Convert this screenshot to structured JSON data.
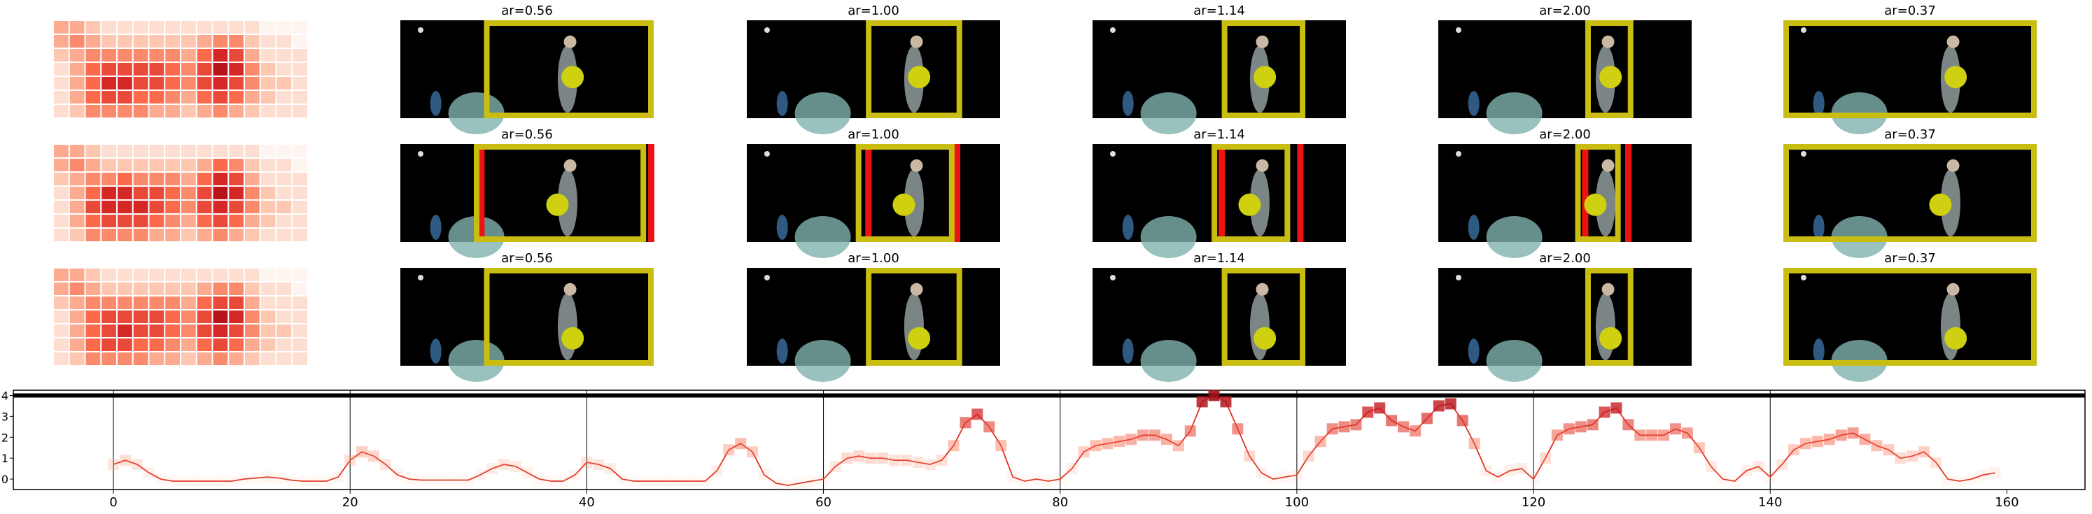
{
  "chart_data": [
    {
      "type": "heatmap",
      "colormap": "Reds",
      "values": [
        [
          3,
          3,
          2,
          1,
          1,
          1,
          1,
          1,
          1,
          1,
          1,
          1,
          1,
          0,
          0,
          0
        ],
        [
          3,
          4,
          3,
          2,
          2,
          2,
          2,
          2,
          2,
          3,
          4,
          4,
          2,
          1,
          1,
          0
        ],
        [
          2,
          3,
          4,
          4,
          4,
          4,
          4,
          4,
          3,
          5,
          7,
          6,
          3,
          1,
          1,
          1
        ],
        [
          1,
          3,
          5,
          6,
          6,
          6,
          6,
          5,
          4,
          6,
          8,
          7,
          4,
          2,
          1,
          1
        ],
        [
          1,
          3,
          5,
          7,
          7,
          6,
          6,
          5,
          4,
          6,
          7,
          6,
          4,
          2,
          2,
          1
        ],
        [
          1,
          3,
          5,
          6,
          6,
          5,
          5,
          4,
          3,
          5,
          6,
          5,
          3,
          2,
          1,
          1
        ],
        [
          1,
          2,
          4,
          4,
          4,
          4,
          3,
          3,
          2,
          3,
          4,
          3,
          2,
          1,
          1,
          1
        ]
      ]
    },
    {
      "type": "heatmap",
      "colormap": "Reds",
      "values": [
        [
          3,
          3,
          2,
          1,
          1,
          1,
          1,
          1,
          1,
          1,
          1,
          1,
          1,
          0,
          0,
          0
        ],
        [
          3,
          4,
          3,
          2,
          2,
          2,
          2,
          2,
          2,
          3,
          5,
          4,
          2,
          1,
          1,
          0
        ],
        [
          2,
          3,
          4,
          4,
          5,
          4,
          4,
          4,
          3,
          5,
          7,
          6,
          3,
          1,
          1,
          1
        ],
        [
          1,
          3,
          5,
          7,
          7,
          6,
          6,
          5,
          4,
          6,
          8,
          7,
          4,
          2,
          1,
          1
        ],
        [
          1,
          3,
          6,
          7,
          7,
          7,
          6,
          5,
          4,
          6,
          7,
          6,
          4,
          2,
          2,
          1
        ],
        [
          1,
          3,
          5,
          6,
          6,
          6,
          5,
          4,
          3,
          5,
          6,
          5,
          3,
          2,
          1,
          1
        ],
        [
          1,
          2,
          4,
          4,
          4,
          4,
          3,
          3,
          2,
          3,
          4,
          3,
          2,
          1,
          1,
          1
        ]
      ]
    },
    {
      "type": "heatmap",
      "colormap": "Reds",
      "values": [
        [
          3,
          3,
          2,
          1,
          1,
          1,
          1,
          1,
          1,
          1,
          1,
          1,
          1,
          0,
          0,
          0
        ],
        [
          3,
          4,
          3,
          2,
          2,
          2,
          2,
          2,
          2,
          3,
          4,
          4,
          2,
          1,
          1,
          0
        ],
        [
          2,
          3,
          4,
          4,
          4,
          4,
          4,
          4,
          3,
          5,
          6,
          6,
          3,
          1,
          1,
          1
        ],
        [
          1,
          3,
          5,
          6,
          6,
          6,
          6,
          5,
          4,
          6,
          8,
          7,
          4,
          2,
          1,
          1
        ],
        [
          1,
          3,
          5,
          6,
          7,
          6,
          6,
          5,
          4,
          6,
          7,
          6,
          4,
          2,
          2,
          1
        ],
        [
          1,
          3,
          5,
          6,
          6,
          5,
          5,
          4,
          3,
          5,
          6,
          5,
          3,
          2,
          1,
          1
        ],
        [
          1,
          2,
          4,
          4,
          4,
          4,
          3,
          3,
          2,
          3,
          4,
          3,
          2,
          1,
          1,
          1
        ]
      ]
    },
    {
      "type": "line",
      "marker_colormap": "Reds",
      "x": [
        0,
        1,
        2,
        3,
        4,
        5,
        6,
        7,
        8,
        9,
        10,
        11,
        12,
        13,
        14,
        15,
        16,
        17,
        18,
        19,
        20,
        21,
        22,
        23,
        24,
        25,
        26,
        27,
        28,
        29,
        30,
        31,
        32,
        33,
        34,
        35,
        36,
        37,
        38,
        39,
        40,
        41,
        42,
        43,
        44,
        45,
        46,
        47,
        48,
        49,
        50,
        51,
        52,
        53,
        54,
        55,
        56,
        57,
        58,
        59,
        60,
        61,
        62,
        63,
        64,
        65,
        66,
        67,
        68,
        69,
        70,
        71,
        72,
        73,
        74,
        75,
        76,
        77,
        78,
        79,
        80,
        81,
        82,
        83,
        84,
        85,
        86,
        87,
        88,
        89,
        90,
        91,
        92,
        93,
        94,
        95,
        96,
        97,
        98,
        99,
        100,
        101,
        102,
        103,
        104,
        105,
        106,
        107,
        108,
        109,
        110,
        111,
        112,
        113,
        114,
        115,
        116,
        117,
        118,
        119,
        120,
        121,
        122,
        123,
        124,
        125,
        126,
        127,
        128,
        129,
        130,
        131,
        132,
        133,
        134,
        135,
        136,
        137,
        138,
        139,
        140,
        141,
        142,
        143,
        144,
        145,
        146,
        147,
        148,
        149,
        150,
        151,
        152,
        153,
        154,
        155,
        156,
        157,
        158,
        159
      ],
      "series": [
        {
          "color": "#e0301e",
          "values": [
            0.7,
            0.9,
            0.7,
            0.3,
            0.0,
            -0.1,
            -0.1,
            -0.1,
            -0.1,
            -0.1,
            -0.1,
            0.0,
            0.05,
            0.1,
            0.05,
            -0.05,
            -0.1,
            -0.1,
            -0.1,
            0.1,
            0.9,
            1.3,
            1.1,
            0.7,
            0.2,
            0.0,
            -0.05,
            -0.05,
            -0.05,
            -0.05,
            -0.05,
            0.2,
            0.5,
            0.7,
            0.6,
            0.3,
            0.0,
            -0.1,
            -0.1,
            0.2,
            0.8,
            0.7,
            0.5,
            0.0,
            -0.1,
            -0.1,
            -0.1,
            -0.1,
            -0.1,
            -0.1,
            -0.1,
            0.4,
            1.4,
            1.7,
            1.3,
            0.2,
            -0.2,
            -0.3,
            -0.2,
            -0.1,
            0.0,
            0.6,
            1.0,
            1.1,
            1.0,
            1.0,
            0.9,
            0.9,
            0.8,
            0.7,
            0.9,
            1.6,
            2.7,
            3.1,
            2.5,
            1.6,
            0.1,
            -0.1,
            0.0,
            -0.1,
            0.0,
            0.5,
            1.3,
            1.6,
            1.7,
            1.8,
            1.9,
            2.1,
            2.1,
            1.9,
            1.6,
            2.3,
            3.7,
            4.0,
            3.7,
            2.4,
            1.1,
            0.3,
            0.0,
            0.1,
            0.2,
            1.1,
            1.8,
            2.4,
            2.5,
            2.6,
            3.2,
            3.4,
            2.8,
            2.5,
            2.3,
            2.9,
            3.5,
            3.6,
            2.8,
            1.7,
            0.4,
            0.1,
            0.4,
            0.5,
            0.0,
            1.0,
            2.1,
            2.4,
            2.5,
            2.6,
            3.2,
            3.4,
            2.6,
            2.1,
            2.1,
            2.1,
            2.4,
            2.2,
            1.5,
            0.6,
            0.0,
            -0.1,
            0.4,
            0.6,
            0.1,
            0.7,
            1.4,
            1.7,
            1.8,
            1.9,
            2.1,
            2.2,
            1.9,
            1.6,
            1.4,
            1.0,
            1.1,
            1.3,
            0.8,
            0.0,
            -0.1,
            0.0,
            0.2,
            0.3
          ]
        }
      ],
      "xlim": [
        -8.46,
        166.6
      ],
      "ylim": [
        -0.5,
        4.25
      ],
      "xticks": [
        0,
        20,
        40,
        60,
        80,
        100,
        120,
        140,
        160
      ],
      "yticks": [
        0,
        1,
        2,
        3,
        4
      ],
      "vlines": [
        0,
        20,
        40,
        60,
        80,
        100,
        120,
        140
      ],
      "hlines": [
        4
      ]
    }
  ],
  "panel_titles": [
    [
      "ar=0.56",
      "ar=1.00",
      "ar=1.14",
      "ar=2.00",
      "ar=0.37"
    ],
    [
      "ar=0.56",
      "ar=1.00",
      "ar=1.14",
      "ar=2.00",
      "ar=0.37"
    ],
    [
      "ar=0.56",
      "ar=1.00",
      "ar=1.14",
      "ar=2.00",
      "ar=0.37"
    ]
  ]
}
